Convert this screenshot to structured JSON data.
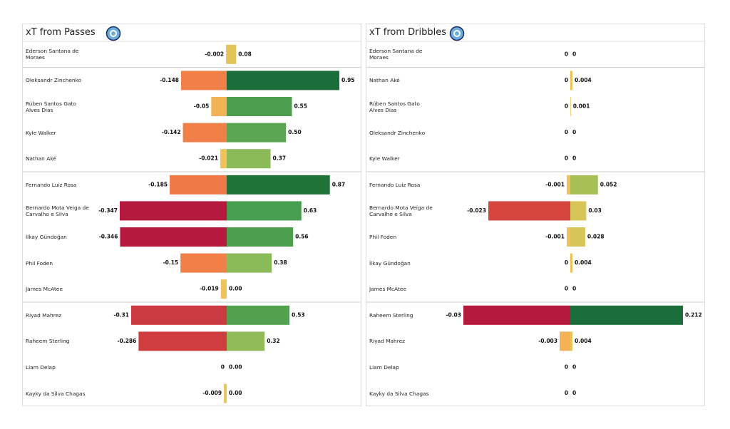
{
  "chart_data": [
    {
      "type": "diverging-bar",
      "title": "xT from Passes",
      "categories": [
        "Ederson Santana de Moraes",
        "Oleksandr Zinchenko",
        "Rúben  Santos Gato Alves Dias",
        "Kyle Walker",
        "Nathan Aké",
        "Fernando Luiz Rosa",
        "Bernardo Mota Veiga de Carvalho e Silva",
        "İlkay Gündoğan",
        "Phil Foden",
        "James McAtee",
        "Riyad Mahrez",
        "Raheem Sterling",
        "Liam Delap",
        "Kayky da Silva Chagas"
      ],
      "series": [
        {
          "values": [
            -0.002,
            -0.148,
            -0.05,
            -0.142,
            -0.021,
            -0.185,
            -0.347,
            -0.346,
            -0.15,
            -0.019,
            -0.31,
            -0.286,
            0,
            -0.009
          ],
          "value_labels": [
            "-0.002",
            "-0.148",
            "-0.05",
            "-0.142",
            "-0.021",
            "-0.185",
            "-0.347",
            "-0.346",
            "-0.15",
            "-0.019",
            "-0.31",
            "-0.286",
            "0",
            "-0.009"
          ],
          "xlim": [
            -0.347,
            0
          ],
          "colors": [
            "#e8c55a",
            "#f08048",
            "#f5b155",
            "#f08048",
            "#f0c25a",
            "#ef7a47",
            "#b5193e",
            "#b5193e",
            "#f08048",
            "#f0c25a",
            "#cb3a40",
            "#cf3d40",
            "#e8c55a",
            "#e8c55a"
          ]
        },
        {
          "values": [
            0.08,
            0.95,
            0.55,
            0.5,
            0.37,
            0.87,
            0.63,
            0.56,
            0.38,
            0,
            0.53,
            0.32,
            0,
            0
          ],
          "value_labels": [
            "0.08",
            "0.95",
            "0.55",
            "0.50",
            "0.37",
            "0.87",
            "0.63",
            "0.56",
            "0.38",
            "0.00",
            "0.53",
            "0.32",
            "0.00",
            "0.00"
          ],
          "xlim": [
            0,
            0.95
          ],
          "colors": [
            "#e2c55a",
            "#1b6e3a",
            "#4e9e50",
            "#5aa652",
            "#8bba58",
            "#1f7238",
            "#489e4f",
            "#4e9e50",
            "#8bba58",
            "#e8c55a",
            "#52a050",
            "#90bb58",
            "#e8c55a",
            "#e8c55a"
          ]
        }
      ]
    },
    {
      "type": "diverging-bar",
      "title": "xT from Dribbles",
      "categories": [
        "Ederson Santana de Moraes",
        "Nathan Aké",
        "Rúben  Santos Gato Alves Dias",
        "Oleksandr Zinchenko",
        "Kyle Walker",
        "Fernando Luiz Rosa",
        "Bernardo Mota Veiga de Carvalho e Silva",
        "Phil Foden",
        "İlkay Gündoğan",
        "James McAtee",
        "Raheem Sterling",
        "Riyad Mahrez",
        "Liam Delap",
        "Kayky da Silva Chagas"
      ],
      "series": [
        {
          "values": [
            0,
            0,
            0,
            0,
            0,
            -0.001,
            -0.023,
            -0.001,
            0,
            0,
            -0.03,
            -0.003,
            0,
            0
          ],
          "value_labels": [
            "0",
            "0",
            "0",
            "0",
            "0",
            "-0.001",
            "-0.023",
            "-0.001",
            "0",
            "0",
            "-0.03",
            "-0.003",
            "0",
            "0"
          ],
          "xlim": [
            -0.03,
            0
          ],
          "colors": [
            "#e8c55a",
            "#e8c55a",
            "#e8c55a",
            "#e8c55a",
            "#e8c55a",
            "#f0c25a",
            "#d6453f",
            "#f0c25a",
            "#e8c55a",
            "#e8c55a",
            "#b5193e",
            "#f5b155",
            "#e8c55a",
            "#e8c55a"
          ]
        },
        {
          "values": [
            0,
            0.004,
            0.001,
            0,
            0,
            0.052,
            0.03,
            0.028,
            0.004,
            0,
            0.212,
            0.004,
            0,
            0
          ],
          "value_labels": [
            "0",
            "0.004",
            "0.001",
            "0",
            "0",
            "0.052",
            "0.03",
            "0.028",
            "0.004",
            "0",
            "0.212",
            "0.004",
            "0",
            "0"
          ],
          "xlim": [
            0,
            0.212
          ],
          "colors": [
            "#e8c55a",
            "#e8c55a",
            "#e8c55a",
            "#e8c55a",
            "#e8c55a",
            "#a8bf58",
            "#d8c55a",
            "#d8c55a",
            "#e8c55a",
            "#e8c55a",
            "#1b6e3a",
            "#e8c55a",
            "#e8c55a",
            "#e8c55a"
          ]
        }
      ]
    }
  ]
}
